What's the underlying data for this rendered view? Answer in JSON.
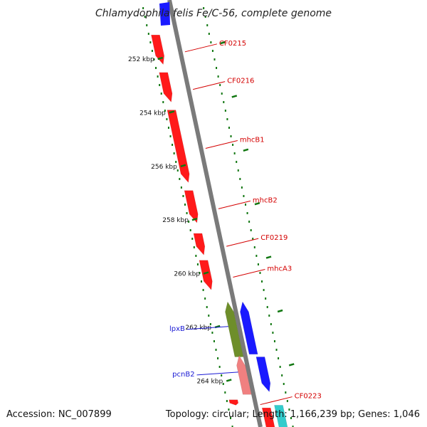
{
  "title": "Chlamydophila felis Fe/C-56, complete genome",
  "accession": "Accession: NC_007899",
  "summary": "Topology: circular; Length: 1,166,239 bp; Genes: 1,046",
  "ticks": [
    {
      "label": "252 kbp",
      "kbp": 252
    },
    {
      "label": "254 kbp",
      "kbp": 254
    },
    {
      "label": "256 kbp",
      "kbp": 256
    },
    {
      "label": "258 kbp",
      "kbp": 258
    },
    {
      "label": "260 kbp",
      "kbp": 260
    },
    {
      "label": "262 kbp",
      "kbp": 262
    },
    {
      "label": "264 kbp",
      "kbp": 264
    }
  ],
  "genes": [
    {
      "name": "CF0215",
      "strand": "forward",
      "color": "#ff1a1a",
      "start_kbp": 251.1,
      "end_kbp": 252.2
    },
    {
      "name": "CF0216",
      "strand": "forward",
      "color": "#ff1a1a",
      "start_kbp": 252.5,
      "end_kbp": 253.6
    },
    {
      "name": "mhcB1",
      "strand": "forward",
      "color": "#ff1a1a",
      "start_kbp": 253.9,
      "end_kbp": 256.6
    },
    {
      "name": "mhcB2",
      "strand": "forward",
      "color": "#ff1a1a",
      "start_kbp": 256.9,
      "end_kbp": 258.1
    },
    {
      "name": "CF0219",
      "strand": "forward",
      "color": "#ff1a1a",
      "start_kbp": 258.5,
      "end_kbp": 259.3
    },
    {
      "name": "mhcA3",
      "strand": "forward",
      "color": "#ff1a1a",
      "start_kbp": 259.5,
      "end_kbp": 260.6
    },
    {
      "name": "lpxB",
      "strand": "reverse",
      "color": "#6e8e2a",
      "start_kbp": 261.1,
      "end_kbp": 263.1
    },
    {
      "name": "pcnB2",
      "strand": "reverse",
      "color": "#f08080",
      "start_kbp": 263.1,
      "end_kbp": 264.5
    },
    {
      "name": "CF0223",
      "strand": "forward",
      "color": "#ff1a1a",
      "start_kbp": 264.7,
      "end_kbp": 264.9
    }
  ],
  "label_colors": {
    "forward": "#d40000",
    "reverse": "#1a1ad4"
  },
  "track_colors": {
    "backbone": "#7a7a7a",
    "blue_gene": "#1a1aff",
    "cyan_gene": "#33cccc",
    "tick": "#117711"
  }
}
